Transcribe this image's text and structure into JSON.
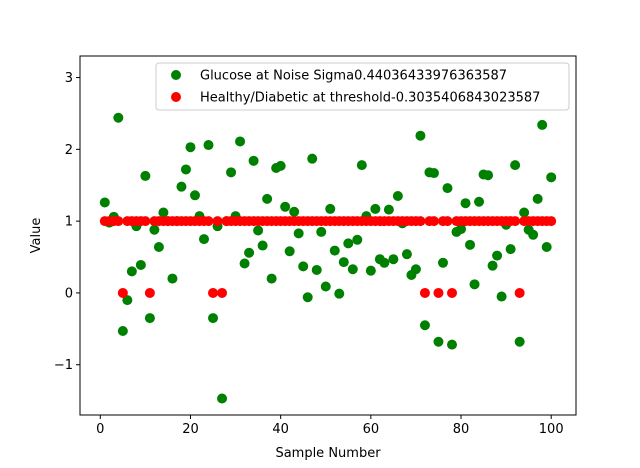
{
  "chart_data": {
    "type": "scatter",
    "xlabel": "Sample Number",
    "ylabel": "Value",
    "xlim": [
      -4.5,
      105.5
    ],
    "ylim": [
      -1.7,
      3.3
    ],
    "xticks": [
      0,
      20,
      40,
      60,
      80,
      100
    ],
    "yticks": [
      -1,
      0,
      1,
      2,
      3
    ],
    "legend_position": "top-right",
    "grid": false,
    "series": [
      {
        "name": "Glucose at Noise Sigma0.44036433976363587",
        "color": "#008000",
        "x": [
          1,
          2,
          3,
          4,
          5,
          6,
          7,
          8,
          9,
          10,
          11,
          12,
          13,
          14,
          15,
          16,
          17,
          18,
          19,
          20,
          21,
          22,
          23,
          24,
          25,
          26,
          27,
          28,
          29,
          30,
          31,
          32,
          33,
          34,
          35,
          36,
          37,
          38,
          39,
          40,
          41,
          42,
          43,
          44,
          45,
          46,
          47,
          48,
          49,
          50,
          51,
          52,
          53,
          54,
          55,
          56,
          57,
          58,
          59,
          60,
          61,
          62,
          63,
          64,
          65,
          66,
          67,
          68,
          69,
          70,
          71,
          72,
          73,
          74,
          75,
          76,
          77,
          78,
          79,
          80,
          81,
          82,
          83,
          84,
          85,
          86,
          87,
          88,
          89,
          90,
          91,
          92,
          93,
          94,
          95,
          96,
          97,
          98,
          99,
          100
        ],
        "y": [
          1.26,
          0.98,
          1.06,
          2.44,
          -0.53,
          -0.1,
          0.3,
          0.93,
          0.39,
          1.63,
          -0.35,
          0.88,
          0.64,
          1.12,
          1.0,
          0.2,
          1.0,
          1.48,
          1.72,
          2.03,
          1.36,
          1.07,
          0.75,
          2.06,
          -0.35,
          0.93,
          -1.47,
          1.0,
          1.68,
          1.07,
          2.11,
          0.41,
          0.56,
          1.84,
          0.87,
          0.66,
          1.31,
          0.2,
          1.74,
          1.77,
          1.2,
          0.58,
          1.13,
          0.83,
          0.37,
          -0.06,
          1.87,
          0.32,
          0.85,
          0.09,
          1.17,
          0.59,
          -0.01,
          0.43,
          0.69,
          0.33,
          0.74,
          1.78,
          1.07,
          0.31,
          1.17,
          0.47,
          0.42,
          1.16,
          0.47,
          1.35,
          0.97,
          0.54,
          0.25,
          0.33,
          2.19,
          -0.45,
          1.68,
          1.67,
          -0.68,
          0.42,
          1.46,
          -0.72,
          0.85,
          0.89,
          1.25,
          0.67,
          0.12,
          1.27,
          1.65,
          1.64,
          0.38,
          0.52,
          -0.05,
          0.95,
          0.61,
          1.78,
          -0.68,
          1.12,
          0.88,
          0.81,
          1.31,
          2.34,
          0.64,
          1.61
        ]
      },
      {
        "name": "Healthy/Diabetic at threshold-0.3035406843023587",
        "color": "#ff0000",
        "x": [
          1,
          2,
          3,
          4,
          5,
          6,
          7,
          8,
          9,
          10,
          11,
          12,
          13,
          14,
          15,
          16,
          17,
          18,
          19,
          20,
          21,
          22,
          23,
          24,
          25,
          26,
          27,
          28,
          29,
          30,
          31,
          32,
          33,
          34,
          35,
          36,
          37,
          38,
          39,
          40,
          41,
          42,
          43,
          44,
          45,
          46,
          47,
          48,
          49,
          50,
          51,
          52,
          53,
          54,
          55,
          56,
          57,
          58,
          59,
          60,
          61,
          62,
          63,
          64,
          65,
          66,
          67,
          68,
          69,
          70,
          71,
          72,
          73,
          74,
          75,
          76,
          77,
          78,
          79,
          80,
          81,
          82,
          83,
          84,
          85,
          86,
          87,
          88,
          89,
          90,
          91,
          92,
          93,
          94,
          95,
          96,
          97,
          98,
          99,
          100
        ],
        "y": [
          1,
          1,
          1,
          1,
          0,
          1,
          1,
          1,
          1,
          1,
          0,
          1,
          1,
          1,
          1,
          1,
          1,
          1,
          1,
          1,
          1,
          1,
          1,
          1,
          0,
          1,
          0,
          1,
          1,
          1,
          1,
          1,
          1,
          1,
          1,
          1,
          1,
          1,
          1,
          1,
          1,
          1,
          1,
          1,
          1,
          1,
          1,
          1,
          1,
          1,
          1,
          1,
          1,
          1,
          1,
          1,
          1,
          1,
          1,
          1,
          1,
          1,
          1,
          1,
          1,
          1,
          1,
          1,
          1,
          1,
          1,
          0,
          1,
          1,
          0,
          1,
          1,
          0,
          1,
          1,
          1,
          1,
          1,
          1,
          1,
          1,
          1,
          1,
          1,
          1,
          1,
          1,
          0,
          1,
          1,
          1,
          1,
          1,
          1,
          1
        ]
      }
    ]
  }
}
